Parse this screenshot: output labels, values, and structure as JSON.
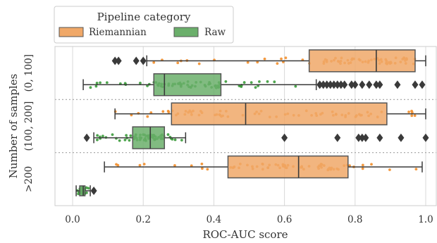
{
  "chart_data": {
    "type": "box",
    "xlabel": "ROC-AUC score",
    "ylabel": "Number of samples",
    "xlim": [
      -0.05,
      1.03
    ],
    "xticks": [
      0.0,
      0.2,
      0.4,
      0.6,
      0.8,
      1.0
    ],
    "xtick_labels": [
      "0.0",
      "0.2",
      "0.4",
      "0.6",
      "0.8",
      "1.0"
    ],
    "grid": true,
    "legend": {
      "title": "Pipeline category",
      "position": "top-left, above plot",
      "entries": [
        {
          "label": "Riemannian",
          "color": "#F28E2B"
        },
        {
          "label": "Raw",
          "color": "#3B9B3B"
        }
      ]
    },
    "groups": [
      "(0, 100]",
      "(100, 200]",
      ">200"
    ],
    "series": [
      {
        "name": "Riemannian",
        "color": "#F28E2B",
        "fill": "#F0A868",
        "stats": [
          {
            "group": "(0, 100]",
            "whislo": 0.21,
            "q1": 0.67,
            "med": 0.86,
            "q3": 0.97,
            "whishi": 1.0,
            "fliers": [
              0.12,
              0.13,
              0.18,
              0.2
            ]
          },
          {
            "group": "(100, 200]",
            "whislo": 0.12,
            "q1": 0.28,
            "med": 0.49,
            "q3": 0.89,
            "whishi": 1.0,
            "fliers": []
          },
          {
            "group": ">200",
            "whislo": 0.09,
            "q1": 0.44,
            "med": 0.64,
            "q3": 0.78,
            "whishi": 0.99,
            "fliers": []
          }
        ]
      },
      {
        "name": "Raw",
        "color": "#3B9B3B",
        "fill": "#6BAF6B",
        "stats": [
          {
            "group": "(0, 100]",
            "whislo": 0.03,
            "q1": 0.23,
            "med": 0.26,
            "q3": 0.42,
            "whishi": 0.69,
            "fliers": [
              0.7,
              0.71,
              0.72,
              0.73,
              0.74,
              0.75,
              0.76,
              0.77,
              0.79,
              0.8,
              0.82,
              0.84,
              0.86,
              0.87,
              0.92,
              0.97,
              0.99
            ]
          },
          {
            "group": "(100, 200]",
            "whislo": 0.06,
            "q1": 0.17,
            "med": 0.22,
            "q3": 0.26,
            "whishi": 0.32,
            "fliers": [
              0.04,
              0.6,
              0.75,
              0.81,
              0.82,
              0.83,
              0.87,
              0.93,
              1.0
            ]
          },
          {
            "group": ">200",
            "whislo": 0.01,
            "q1": 0.02,
            "med": 0.03,
            "q3": 0.035,
            "whishi": 0.05,
            "fliers": [
              0.06
            ]
          }
        ]
      }
    ]
  }
}
